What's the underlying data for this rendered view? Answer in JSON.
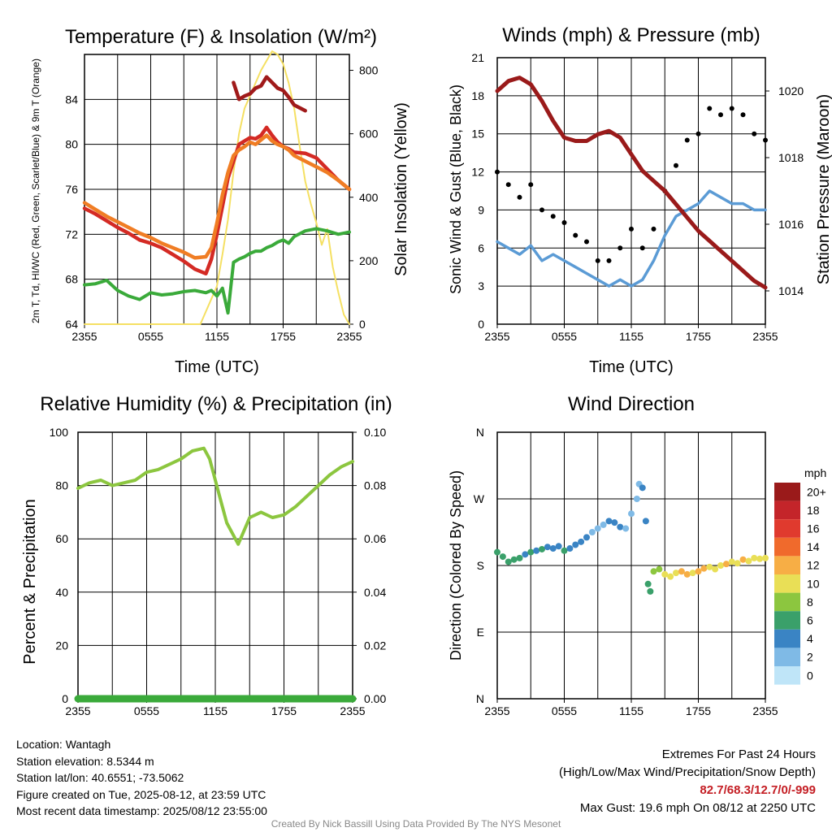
{
  "chart_data": [
    {
      "type": "line",
      "title": "Temperature (F) & Insolation (W/m²)",
      "xlabel": "Time (UTC)",
      "ylabel": "2m T, Td, HI/WC (Red, Green, Scarlet/Blue) & 9m T (Orange)",
      "ylabel_right": "Solar Insolation (Yellow)",
      "x_ticks": [
        "2355",
        "0555",
        "1155",
        "1755",
        "2355"
      ],
      "ylim": [
        64,
        88
      ],
      "y_ticks": [
        64,
        68,
        72,
        76,
        80,
        84
      ],
      "ylim_right": [
        0,
        850
      ],
      "y_ticks_right": [
        0,
        200,
        400,
        600,
        800
      ],
      "x_hours": [
        0,
        1,
        2,
        3,
        4,
        5,
        6,
        7,
        8,
        9,
        10,
        11,
        11.5,
        12,
        12.5,
        13,
        13.5,
        14,
        14.5,
        15,
        15.5,
        16,
        16.5,
        17,
        17.5,
        18,
        18.5,
        19,
        20,
        21,
        22,
        23,
        24
      ],
      "series": [
        {
          "name": "2m T",
          "color": "#d42a24",
          "values": [
            74.3,
            73.8,
            73.2,
            72.6,
            72.1,
            71.5,
            71.2,
            70.8,
            70.2,
            69.6,
            68.9,
            68.5,
            69.8,
            72.0,
            74.5,
            77.0,
            78.5,
            80.0,
            80.3,
            80.6,
            80.5,
            80.8,
            81.5,
            80.8,
            80.2,
            79.8,
            79.6,
            79.3,
            79.2,
            78.8,
            77.8,
            76.8,
            76.0
          ]
        },
        {
          "name": "9m T",
          "color": "#f07d24",
          "values": [
            74.8,
            74.2,
            73.6,
            73.1,
            72.6,
            72.1,
            71.7,
            71.2,
            70.8,
            70.4,
            69.9,
            70.0,
            70.8,
            73.0,
            75.5,
            77.5,
            79.0,
            79.5,
            79.8,
            80.2,
            80.0,
            80.4,
            80.8,
            80.3,
            80.0,
            79.8,
            79.5,
            79.0,
            78.5,
            78.0,
            77.5,
            76.8,
            76.0
          ]
        },
        {
          "name": "Td",
          "color": "#3aaa3a",
          "values": [
            67.5,
            67.6,
            67.9,
            67.0,
            66.5,
            66.2,
            66.8,
            66.6,
            66.7,
            66.9,
            67.0,
            66.8,
            67.0,
            66.5,
            67.2,
            65.0,
            69.5,
            69.8,
            70.0,
            70.3,
            70.5,
            70.5,
            70.8,
            71.0,
            71.3,
            71.5,
            71.2,
            71.8,
            72.3,
            72.5,
            72.3,
            72.0,
            72.2
          ]
        },
        {
          "name": "HI/WC",
          "color": "#a01a1a",
          "values": [
            null,
            null,
            null,
            null,
            null,
            null,
            null,
            null,
            null,
            null,
            null,
            null,
            null,
            null,
            null,
            null,
            85.5,
            84.0,
            84.3,
            84.5,
            85.0,
            85.2,
            86.0,
            85.5,
            85.0,
            84.8,
            84.2,
            83.5,
            83.0,
            null,
            null,
            null,
            null
          ]
        }
      ],
      "insolation": {
        "name": "Solar Insolation",
        "color": "#f5e063",
        "x_hours": [
          0,
          1,
          2,
          3,
          4,
          5,
          6,
          7,
          8,
          9,
          10,
          10.5,
          11,
          11.5,
          12,
          12.5,
          13,
          13.5,
          14,
          14.5,
          15,
          15.5,
          16,
          16.5,
          17,
          17.5,
          18,
          18.5,
          19,
          19.5,
          20,
          20.5,
          21,
          21.5,
          22,
          22.5,
          23,
          23.5,
          24
        ],
        "values": [
          0,
          0,
          0,
          0,
          0,
          0,
          0,
          0,
          0,
          0,
          0,
          0,
          40,
          80,
          120,
          220,
          330,
          480,
          600,
          680,
          720,
          760,
          800,
          830,
          860,
          850,
          820,
          760,
          680,
          560,
          450,
          380,
          320,
          250,
          300,
          180,
          100,
          30,
          0
        ]
      }
    },
    {
      "type": "line",
      "title": "Winds (mph) & Pressure (mb)",
      "xlabel": "Time (UTC)",
      "ylabel": "Sonic Wind & Gust (Blue, Black)",
      "ylabel_right": "Station Pressure (Maroon)",
      "x_ticks": [
        "2355",
        "0555",
        "1155",
        "1755",
        "2355"
      ],
      "ylim": [
        0,
        21
      ],
      "y_ticks": [
        0,
        3,
        6,
        9,
        12,
        15,
        18,
        21
      ],
      "ylim_right": [
        1013.0,
        1021.0
      ],
      "y_ticks_right": [
        1014,
        1016,
        1018,
        1020
      ],
      "x_hours": [
        0,
        1,
        2,
        3,
        4,
        5,
        6,
        7,
        8,
        9,
        10,
        11,
        12,
        13,
        14,
        15,
        16,
        17,
        18,
        19,
        20,
        21,
        22,
        23,
        24
      ],
      "series": [
        {
          "name": "Sonic Wind",
          "color": "#5b9bd5",
          "values": [
            6.5,
            6.0,
            5.5,
            6.2,
            5.0,
            5.5,
            5.0,
            4.5,
            4.0,
            3.5,
            3.0,
            3.5,
            3.0,
            3.5,
            5.0,
            7.0,
            8.5,
            9.0,
            9.5,
            10.5,
            10.0,
            9.5,
            9.5,
            9.0,
            9.0
          ]
        },
        {
          "name": "Gust",
          "color": "#000000",
          "values": [
            12.0,
            11.0,
            10.0,
            11.0,
            9.0,
            8.5,
            8.0,
            7.0,
            6.5,
            5.0,
            5.0,
            6.0,
            7.5,
            6.0,
            7.5,
            10.5,
            12.5,
            14.5,
            15.0,
            17.0,
            16.5,
            17.0,
            16.5,
            15.0,
            14.5
          ]
        },
        {
          "name": "Station Pressure",
          "color": "#9a1a1a",
          "axis": "right",
          "values": [
            1020.0,
            1020.3,
            1020.4,
            1020.2,
            1019.7,
            1019.1,
            1018.6,
            1018.5,
            1018.5,
            1018.7,
            1018.8,
            1018.6,
            1018.1,
            1017.6,
            1017.3,
            1017.0,
            1016.6,
            1016.2,
            1015.8,
            1015.5,
            1015.2,
            1014.9,
            1014.6,
            1014.3,
            1014.1
          ]
        }
      ]
    },
    {
      "type": "line",
      "title": "Relative Humidity (%) & Precipitation (in)",
      "ylabel": "Percent & Precipitation",
      "x_ticks": [
        "2355",
        "0555",
        "1155",
        "1755",
        "2355"
      ],
      "ylim": [
        0,
        100
      ],
      "y_ticks": [
        0,
        20,
        40,
        60,
        80,
        100
      ],
      "ylim_right": [
        0,
        0.1
      ],
      "y_ticks_right": [
        "0.00",
        "0.02",
        "0.04",
        "0.06",
        "0.08",
        "0.10"
      ],
      "x_hours": [
        0,
        1,
        2,
        3,
        4,
        5,
        6,
        7,
        8,
        9,
        10,
        11,
        11.5,
        12,
        12.5,
        13,
        13.5,
        14,
        15,
        16,
        17,
        18,
        19,
        20,
        21,
        22,
        23,
        24
      ],
      "series": [
        {
          "name": "Relative Humidity",
          "color": "#8cc63f",
          "values": [
            79,
            81,
            82,
            80,
            81,
            82,
            85,
            86,
            88,
            90,
            93,
            94,
            90,
            82,
            74,
            66,
            62,
            58,
            68,
            70,
            68,
            69,
            72,
            76,
            80,
            84,
            87,
            89
          ]
        },
        {
          "name": "Precipitation",
          "color": "#3aaa3a",
          "values": [
            0,
            0,
            0,
            0,
            0,
            0,
            0,
            0,
            0,
            0,
            0,
            0,
            0,
            0,
            0,
            0,
            0,
            0,
            0,
            0,
            0,
            0,
            0,
            0,
            0,
            0,
            0,
            0
          ]
        }
      ]
    },
    {
      "type": "scatter",
      "title": "Wind Direction",
      "ylabel": "Direction (Colored By Speed)",
      "x_ticks": [
        "2355",
        "0555",
        "1155",
        "1755",
        "2355"
      ],
      "y_ticks": [
        "N",
        "E",
        "S",
        "W",
        "N"
      ],
      "ylim": [
        0,
        360
      ],
      "legend": {
        "title": "mph",
        "labels": [
          "20+",
          "18",
          "16",
          "14",
          "12",
          "10",
          "8",
          "6",
          "4",
          "2",
          "0"
        ],
        "colors": [
          "#9a1a1a",
          "#c4252a",
          "#e03a2e",
          "#f06a2c",
          "#f7ae45",
          "#e9df56",
          "#8cc63f",
          "#3aa06a",
          "#3a84c4",
          "#7fbae6",
          "#bfe5f8"
        ]
      },
      "points": [
        [
          0,
          198,
          5
        ],
        [
          0.5,
          192,
          6
        ],
        [
          1,
          185,
          5
        ],
        [
          1.5,
          188,
          6
        ],
        [
          2,
          190,
          5
        ],
        [
          2.5,
          195,
          4
        ],
        [
          3,
          198,
          5
        ],
        [
          3.5,
          200,
          4
        ],
        [
          4,
          202,
          5
        ],
        [
          4.5,
          205,
          4
        ],
        [
          5,
          203,
          4
        ],
        [
          5.5,
          206,
          4
        ],
        [
          6,
          200,
          5
        ],
        [
          6.5,
          203,
          4
        ],
        [
          7,
          208,
          4
        ],
        [
          7.5,
          212,
          3
        ],
        [
          8,
          218,
          3
        ],
        [
          8.5,
          225,
          2
        ],
        [
          9,
          230,
          2
        ],
        [
          9.5,
          235,
          2
        ],
        [
          10,
          240,
          3
        ],
        [
          10.5,
          238,
          4
        ],
        [
          11,
          232,
          3
        ],
        [
          11.5,
          230,
          2
        ],
        [
          12,
          250,
          2
        ],
        [
          12.5,
          270,
          1
        ],
        [
          12.7,
          290,
          1
        ],
        [
          13,
          285,
          4
        ],
        [
          13.3,
          240,
          4
        ],
        [
          13.5,
          155,
          6
        ],
        [
          13.7,
          145,
          6
        ],
        [
          14,
          172,
          8
        ],
        [
          14.5,
          175,
          8
        ],
        [
          15,
          168,
          9
        ],
        [
          15.5,
          165,
          10
        ],
        [
          16,
          170,
          9
        ],
        [
          16.5,
          172,
          11
        ],
        [
          17,
          168,
          12
        ],
        [
          17.5,
          170,
          10
        ],
        [
          18,
          172,
          11
        ],
        [
          18.5,
          176,
          11
        ],
        [
          19,
          178,
          10
        ],
        [
          19.5,
          175,
          10
        ],
        [
          20,
          180,
          9
        ],
        [
          20.5,
          182,
          11
        ],
        [
          21,
          185,
          10
        ],
        [
          21.5,
          183,
          10
        ],
        [
          22,
          188,
          11
        ],
        [
          22.5,
          186,
          10
        ],
        [
          23,
          190,
          10
        ],
        [
          23.5,
          189,
          10
        ],
        [
          24,
          190,
          10
        ]
      ]
    }
  ],
  "footer": {
    "location": "Location: Wantagh",
    "elevation": "Station elevation: 8.5344 m",
    "latlon": "Station lat/lon: 40.6551; -73.5062",
    "created": "Figure created on Tue, 2025-08-12, at 23:59 UTC",
    "recent": "Most recent data timestamp: 2025/08/12 23:55:00",
    "extremes_title": "Extremes For Past 24 Hours",
    "extremes_desc": "(High/Low/Max Wind/Precipitation/Snow Depth)",
    "extremes_values": "82.7/68.3/12.7/0/-999",
    "max_gust": "Max Gust: 19.6 mph On 08/12 at 2250 UTC",
    "credit": "Created By Nick Bassill Using Data Provided By The NYS Mesonet"
  }
}
